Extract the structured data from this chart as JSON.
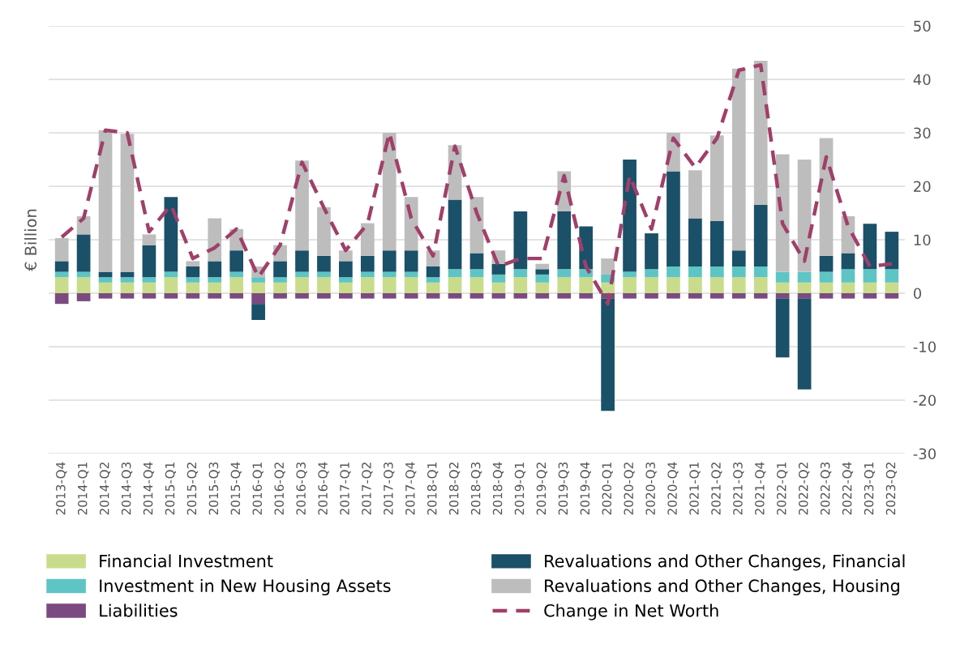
{
  "chart_data": {
    "type": "bar",
    "stacked": true,
    "ylabel": "€ Billion",
    "categories": [
      "2013-Q4",
      "2014-Q1",
      "2014-Q2",
      "2014-Q3",
      "2014-Q4",
      "2015-Q1",
      "2015-Q2",
      "2015-Q3",
      "2015-Q4",
      "2016-Q1",
      "2016-Q2",
      "2016-Q3",
      "2016-Q4",
      "2017-Q1",
      "2017-Q2",
      "2017-Q3",
      "2017-Q4",
      "2018-Q1",
      "2018-Q2",
      "2018-Q3",
      "2018-Q4",
      "2019-Q1",
      "2019-Q2",
      "2019-Q3",
      "2019-Q4",
      "2020-Q1",
      "2020-Q2",
      "2020-Q3",
      "2020-Q4",
      "2021-Q1",
      "2021-Q2",
      "2021-Q3",
      "2021-Q4",
      "2022-Q1",
      "2022-Q2",
      "2022-Q3",
      "2022-Q4",
      "2023-Q1",
      "2023-Q2"
    ],
    "series": [
      {
        "name": "Financial Investment",
        "color": "#c8dc8c",
        "values": [
          3,
          3,
          2,
          2,
          2,
          3,
          2,
          2,
          3,
          2,
          2,
          3,
          3,
          2,
          3,
          3,
          3,
          2,
          3,
          3,
          2,
          3,
          2,
          3,
          3,
          2,
          3,
          3,
          3,
          3,
          3,
          3,
          3,
          2,
          2,
          2,
          2,
          2,
          2
        ]
      },
      {
        "name": "Investment in New Housing Assets",
        "color": "#5fc4c4",
        "values": [
          1,
          1,
          1,
          1,
          1,
          1,
          1,
          1,
          1,
          1,
          1,
          1,
          1,
          1,
          1,
          1,
          1,
          1,
          1.5,
          1.5,
          1.5,
          1.5,
          1.5,
          1.5,
          1.5,
          1.5,
          1,
          1.5,
          2,
          2,
          2,
          2,
          2,
          2,
          2,
          2,
          2.5,
          2.5,
          2.5
        ]
      },
      {
        "name": "Liabilities",
        "color": "#7a4a80",
        "values": [
          -2,
          -1.5,
          -1,
          -1,
          -1,
          -1,
          -1,
          -1,
          -1,
          -2,
          -1,
          -1,
          -1,
          -1,
          -1,
          -1,
          -1,
          -1,
          -1,
          -1,
          -1,
          -1,
          -1,
          -1,
          -1,
          -1,
          -1,
          -1,
          -1,
          -1,
          -1,
          -1,
          -1,
          -1,
          -1,
          -1,
          -1,
          -1,
          -1
        ]
      },
      {
        "name": "Revaluations and Other Changes, Financial",
        "color": "#1a5068",
        "values": [
          2,
          7,
          1,
          1,
          6,
          14,
          2,
          3,
          4,
          -3,
          3,
          4,
          3,
          3,
          3,
          4,
          4,
          2,
          13,
          3,
          2,
          10.8,
          1,
          10.8,
          8,
          -21,
          21,
          6.7,
          17.8,
          9,
          8.5,
          3,
          11.5,
          -11,
          -17,
          3,
          3,
          8.5,
          7
        ]
      },
      {
        "name": "Revaluations and Other Changes, Housing",
        "color": "#bdbdbd",
        "values": [
          4.3,
          3.4,
          26.5,
          25.8,
          2,
          0,
          1,
          8,
          4,
          2,
          3,
          16.8,
          9.1,
          2,
          6.1,
          22,
          10,
          3,
          10.2,
          10.5,
          2.5,
          0,
          1,
          7.5,
          0,
          3,
          0,
          0,
          7.2,
          9,
          16,
          34,
          27,
          22,
          21,
          22,
          6.9,
          0,
          0
        ]
      },
      {
        "name": "Change in Net Worth",
        "type": "line",
        "color": "#a0406a",
        "line_style": "dashed",
        "values": [
          10.5,
          14,
          30.5,
          30,
          11.5,
          16.5,
          6.5,
          8.5,
          12,
          3,
          9,
          24.5,
          16,
          8,
          13,
          30,
          14,
          7,
          27.5,
          15,
          5,
          6.5,
          6.5,
          22,
          5,
          -2,
          22,
          12,
          29,
          23.5,
          29,
          41.7,
          42.7,
          13,
          6,
          25.5,
          12.5,
          5,
          5.5
        ]
      }
    ],
    "ylim": [
      -30,
      50
    ],
    "yticks": [
      -30,
      -20,
      -10,
      0,
      10,
      20,
      30,
      40,
      50
    ],
    "grid": "y",
    "legend": "bottom"
  }
}
